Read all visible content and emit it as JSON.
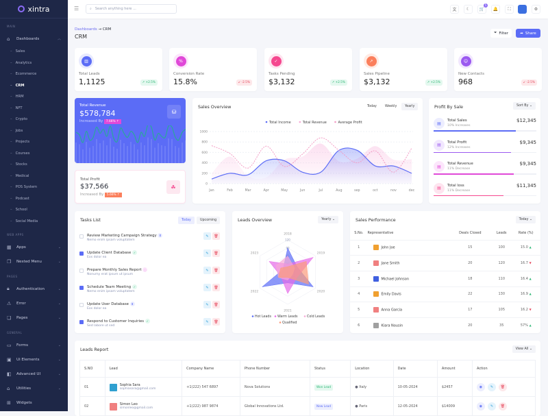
{
  "app": {
    "name": "xintra"
  },
  "sidebar": {
    "sections": [
      {
        "label": "MAIN"
      },
      {
        "label": "WEB APPS"
      },
      {
        "label": "PAGES"
      },
      {
        "label": "GENERAL"
      }
    ],
    "dashboards": {
      "label": "Dashboards",
      "icon": "home-icon"
    },
    "sub_items": [
      "Sales",
      "Analytics",
      "Ecommerce",
      "CRM",
      "HRM",
      "NFT",
      "Crypto",
      "Jobs",
      "Projects",
      "Courses",
      "Stocks",
      "Medical",
      "POS System",
      "Podcast",
      "School",
      "Social Media"
    ],
    "active": "CRM",
    "web_apps": [
      {
        "label": "Apps",
        "icon": "apps-icon"
      },
      {
        "label": "Nested Menu",
        "icon": "layers-icon"
      }
    ],
    "pages": [
      {
        "label": "Authentication",
        "icon": "lock-icon"
      },
      {
        "label": "Error",
        "icon": "warning-icon"
      },
      {
        "label": "Pages",
        "icon": "pages-icon"
      }
    ],
    "general": [
      {
        "label": "Forms",
        "icon": "clipboard-icon"
      },
      {
        "label": "Ui Elements",
        "icon": "box-icon"
      },
      {
        "label": "Advanced UI",
        "icon": "layout-icon"
      },
      {
        "label": "Utilities",
        "icon": "inbox-icon"
      },
      {
        "label": "Widgets",
        "icon": "gift-icon"
      }
    ]
  },
  "header": {
    "search_placeholder": "Search anything here ...",
    "cart_count": "5"
  },
  "breadcrumb": {
    "parent": "Dashboards",
    "sep": "→",
    "current": "CRM"
  },
  "page_title": "CRM",
  "actions": {
    "filter": "Filter",
    "share": "Share"
  },
  "stats": [
    {
      "label": "Total Leads",
      "value": "1,1125",
      "change": "+2.5%",
      "trend": "up",
      "color": "#5b6cf6",
      "bg": "#e8eafe",
      "icon": "chart-icon"
    },
    {
      "label": "Conversion Rate",
      "value": "15.8%",
      "change": "-2.5%",
      "trend": "down",
      "color": "#e048d8",
      "bg": "#fce6fb",
      "icon": "percent-icon"
    },
    {
      "label": "Tasks Pending",
      "value": "$3,132",
      "change": "+2.5%",
      "trend": "up",
      "color": "#f5488f",
      "bg": "#fee4ef",
      "icon": "check-circle-icon"
    },
    {
      "label": "Sales Pipeline",
      "value": "$3,132",
      "change": "+2.5%",
      "trend": "up",
      "color": "#fb7f5c",
      "bg": "#ffebe4",
      "icon": "trend-icon"
    },
    {
      "label": "New Contacts",
      "value": "968",
      "change": "-2.5%",
      "trend": "down",
      "color": "#9b59f0",
      "bg": "#f1e7fe",
      "icon": "user-plus-icon"
    }
  ],
  "total_revenue": {
    "label": "Total Revenue",
    "value": "$578,784",
    "increased_label": "Increased By",
    "badge": "7.66% ↑",
    "sparkline": [
      60,
      55,
      40,
      62,
      45,
      50,
      70,
      58,
      66,
      52,
      72,
      48,
      42,
      68,
      58,
      50,
      62,
      55,
      40,
      60,
      52,
      75,
      70,
      45,
      58,
      52,
      50,
      72,
      70,
      50,
      45,
      60,
      66
    ]
  },
  "total_profit": {
    "label": "Total Profit",
    "value": "$37,566",
    "increased_label": "Increased By",
    "badge": "5.66% ↑"
  },
  "sales_overview": {
    "title": "Sales Overview",
    "tabs": [
      "Today",
      "Weekly",
      "Yearly"
    ],
    "active_tab": "Yearly"
  },
  "chart_data": [
    {
      "type": "line",
      "title": "",
      "categories": [
        "Jan",
        "Feb",
        "Mar",
        "Apr",
        "May",
        "Jun",
        "Jul",
        "Aug",
        "sep",
        "oct",
        "nov",
        "dec"
      ],
      "ylim": [
        0,
        1000
      ],
      "yticks": [
        0,
        200,
        400,
        600,
        800,
        1000
      ],
      "legend": "top",
      "grid": true,
      "series": [
        {
          "name": "Total Income",
          "color": "#5b6cf6",
          "style": "solid-area",
          "values": [
            90,
            200,
            170,
            440,
            440,
            220,
            220,
            640,
            640,
            340,
            340,
            200
          ]
        },
        {
          "name": "Total Revenue",
          "color": "#f7a8d6",
          "style": "area",
          "values": [
            200,
            520,
            150,
            120,
            460,
            520,
            770,
            430,
            480,
            720,
            460,
            470
          ]
        },
        {
          "name": "Average Profit",
          "color": "#f39cc4",
          "style": "dashed",
          "values": [
            730,
            580,
            300,
            720,
            330,
            570,
            880,
            640,
            400,
            630,
            220,
            680
          ]
        }
      ]
    },
    {
      "type": "radar",
      "title": "",
      "categories": [
        "2018",
        "2019",
        "2020",
        "2021",
        "2022",
        "2023"
      ],
      "ylim": [
        0,
        120
      ],
      "ticks": [
        "0",
        "30",
        "60",
        "90",
        "120"
      ],
      "legend": "bottom",
      "series": [
        {
          "name": "Hot Leads",
          "color": "#5b6cf6",
          "values": [
            90,
            40,
            110,
            40,
            110,
            20
          ]
        },
        {
          "name": "Warm Leads",
          "color": "#e66be8",
          "values": [
            30,
            110,
            40,
            80,
            30,
            80
          ]
        },
        {
          "name": "Cold Leads",
          "color": "#f7a8d6",
          "values": [
            60,
            30,
            20,
            30,
            40,
            50
          ]
        },
        {
          "name": "Qualified",
          "color": "#fb9b7c",
          "values": [
            20,
            80,
            90,
            20,
            40,
            30
          ]
        }
      ]
    }
  ],
  "profit_by_sale": {
    "title": "Profit By Sale",
    "sort_label": "Sort By",
    "items": [
      {
        "title": "Total Sales",
        "sub": "10% Increases",
        "value": "$12,345",
        "progress": 80,
        "color": "#5b6cf6",
        "bg": "#ecedfe",
        "icon": "wallet-icon"
      },
      {
        "title": "Total Profit",
        "sub": "12% Increases",
        "value": "$9,345",
        "progress": 75,
        "color": "#9b59f0",
        "bg": "#f1e7fe",
        "icon": "receipt-icon"
      },
      {
        "title": "Total Revenue",
        "sub": "11% Decrease",
        "value": "$9,345",
        "progress": 78,
        "color": "#e048d8",
        "bg": "#fce6fb",
        "icon": "receipt-icon"
      },
      {
        "title": "Total loss",
        "sub": "11% Decrease",
        "value": "$11,345",
        "progress": 68,
        "color": "#f5488f",
        "bg": "#fee4ef",
        "icon": "receipt-icon"
      }
    ]
  },
  "tasks": {
    "title": "Tasks List",
    "tabs": [
      "Today",
      "Upcoming"
    ],
    "active_tab": "Today",
    "items": [
      {
        "title": "Review Marketing Campaign Strategy",
        "sub": "Nemo enim ipsam voluptatem",
        "checked": false,
        "status": "pending"
      },
      {
        "title": "Update Client Database",
        "sub": "Eos dolor ea",
        "checked": true,
        "status": "done"
      },
      {
        "title": "Prepare Monthly Sales Report",
        "sub": "Nonumy erat ipsum ut ipsum",
        "checked": false,
        "status": "in-progress"
      },
      {
        "title": "Schedule Team Meeting",
        "sub": "Nemo enim ipsam voluptatem",
        "checked": true,
        "status": "done"
      },
      {
        "title": "Update User Database",
        "sub": "Eos dolor ea",
        "checked": false,
        "status": "pending"
      },
      {
        "title": "Respond to Customer Inquiries",
        "sub": "Sed labore ut sed",
        "checked": true,
        "status": "done"
      }
    ]
  },
  "leads_overview": {
    "title": "Leads Overview",
    "filter": "Yearly"
  },
  "sales_performance": {
    "title": "Sales Performance",
    "filter": "Today",
    "columns": [
      "S.No.",
      "Representative",
      "Deals Closed",
      "Leads",
      "Rate (%)"
    ],
    "rows": [
      {
        "no": "1",
        "name": "John Joe",
        "deals": "15",
        "leads": "100",
        "rate": "15.0",
        "trend": "up",
        "avatar": "#f0a030"
      },
      {
        "no": "2",
        "name": "Jane Smith",
        "deals": "20",
        "leads": "120",
        "rate": "16.7",
        "trend": "down",
        "avatar": "#f08080"
      },
      {
        "no": "3",
        "name": "Michael Johnson",
        "deals": "18",
        "leads": "110",
        "rate": "16.4",
        "trend": "up",
        "avatar": "#4060e0"
      },
      {
        "no": "4",
        "name": "Emily Davis",
        "deals": "22",
        "leads": "130",
        "rate": "16.9",
        "trend": "up",
        "avatar": "#f0a030"
      },
      {
        "no": "5",
        "name": "Anna Garcia",
        "deals": "17",
        "leads": "105",
        "rate": "16.2",
        "trend": "down",
        "avatar": "#f08080"
      },
      {
        "no": "6",
        "name": "Kiara Nousin",
        "deals": "20",
        "leads": "35",
        "rate": "57%",
        "trend": "up",
        "avatar": "#a0a0a0"
      }
    ]
  },
  "leads_report": {
    "title": "Leads Report",
    "filter": "View All",
    "columns": [
      "S.NO",
      "Lead",
      "Company Name",
      "Phone Number",
      "Status",
      "Location",
      "Date",
      "Amount",
      "Action"
    ],
    "rows": [
      {
        "no": "01",
        "name": "Sophia Sara",
        "email": "sophiasara@gmail.com",
        "company": "+1(222) 547 6897",
        "phone": "Nova Solutions",
        "status": "Won Lead",
        "status_type": "won",
        "location": "Italy",
        "date": "10-05-2024",
        "amount": "$2457",
        "avatar": "#30a0d0"
      },
      {
        "no": "02",
        "name": "Simon Leo",
        "email": "simonleo@gmail.com",
        "company": "+1(222) 987 9874",
        "phone": "Global Innovations Ltd.",
        "status": "New Lead",
        "status_type": "new",
        "location": "Paris",
        "date": "12-05-2024",
        "amount": "$14009",
        "avatar": "#f08080"
      }
    ]
  }
}
